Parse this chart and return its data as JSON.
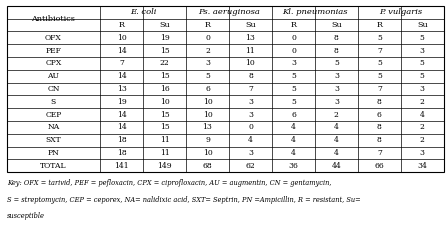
{
  "col_headers_level1": [
    "",
    "E. coli",
    "Ps. aeruginosa",
    "Kl. pneumonias",
    "P. vulgaris"
  ],
  "rows": [
    [
      "OFX",
      10,
      19,
      0,
      13,
      0,
      8,
      5,
      5
    ],
    [
      "PEF",
      14,
      15,
      2,
      11,
      0,
      8,
      7,
      3
    ],
    [
      "CPX",
      7,
      22,
      3,
      10,
      3,
      5,
      5,
      5
    ],
    [
      "AU",
      14,
      15,
      5,
      8,
      5,
      3,
      5,
      5
    ],
    [
      "CN",
      13,
      16,
      6,
      7,
      5,
      3,
      7,
      3
    ],
    [
      "S",
      19,
      10,
      10,
      3,
      5,
      3,
      8,
      2
    ],
    [
      "CEP",
      14,
      15,
      10,
      3,
      6,
      2,
      6,
      4
    ],
    [
      "NA",
      14,
      15,
      13,
      0,
      4,
      4,
      8,
      2
    ],
    [
      "SXT",
      18,
      11,
      9,
      4,
      4,
      4,
      8,
      2
    ],
    [
      "PN",
      18,
      11,
      10,
      3,
      4,
      4,
      7,
      3
    ]
  ],
  "total_row": [
    "TOTAL",
    141,
    149,
    68,
    62,
    36,
    44,
    66,
    34
  ],
  "footnote_line1": "Key: OFX = tarivid, PEF = pefloxacin, CPX = ciprofloxacin, AU = augmentin, CN = gentamycin,",
  "footnote_line2": "S = streptomycin, CEP = ceporex, NA= nalidixic acid, SXT= Septrin, PN =Ampicillin, R = resistant, Su=",
  "footnote_line3": "susceptible",
  "col_widths_rel": [
    1.85,
    0.85,
    0.85,
    0.85,
    0.85,
    0.85,
    0.85,
    0.85,
    0.85
  ]
}
